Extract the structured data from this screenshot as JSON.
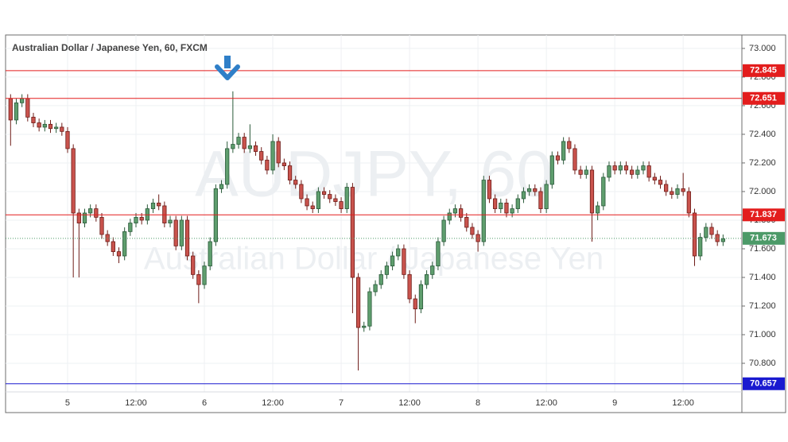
{
  "chart_data": {
    "type": "candlestick",
    "title": "Australian Dollar / Japanese Yen, 60, FXCM",
    "watermark": "AUDJPY, 60",
    "watermark_subtitle": "Australian Dollar / Japanese Yen",
    "up_color": "#5f9e6e",
    "up_border": "#2a5a3a",
    "down_color": "#c9534d",
    "down_border": "#6e1c18",
    "ohlc": [
      [
        72.65,
        72.68,
        72.32,
        72.5
      ],
      [
        72.5,
        72.65,
        72.47,
        72.62
      ],
      [
        72.62,
        72.68,
        72.59,
        72.65
      ],
      [
        72.65,
        72.68,
        72.49,
        72.52
      ],
      [
        72.52,
        72.55,
        72.45,
        72.48
      ],
      [
        72.48,
        72.51,
        72.42,
        72.45
      ],
      [
        72.45,
        72.5,
        72.42,
        72.47
      ],
      [
        72.47,
        72.5,
        72.41,
        72.44
      ],
      [
        72.44,
        72.48,
        72.41,
        72.45
      ],
      [
        72.45,
        72.48,
        72.39,
        72.42
      ],
      [
        72.42,
        72.45,
        72.27,
        72.3
      ],
      [
        72.3,
        72.33,
        71.4,
        71.85
      ],
      [
        71.85,
        71.88,
        71.4,
        71.78
      ],
      [
        71.78,
        71.88,
        71.75,
        71.85
      ],
      [
        71.85,
        71.91,
        71.82,
        71.88
      ],
      [
        71.88,
        71.91,
        71.79,
        71.82
      ],
      [
        71.82,
        71.85,
        71.67,
        71.7
      ],
      [
        71.7,
        71.73,
        71.62,
        71.65
      ],
      [
        71.65,
        71.68,
        71.55,
        71.58
      ],
      [
        71.58,
        71.61,
        71.5,
        71.55
      ],
      [
        71.55,
        71.75,
        71.52,
        71.72
      ],
      [
        71.72,
        71.81,
        71.69,
        71.78
      ],
      [
        71.78,
        71.85,
        71.75,
        71.82
      ],
      [
        71.82,
        71.85,
        71.77,
        71.8
      ],
      [
        71.8,
        71.91,
        71.77,
        71.88
      ],
      [
        71.88,
        71.95,
        71.85,
        71.92
      ],
      [
        71.92,
        71.98,
        71.87,
        71.9
      ],
      [
        71.9,
        71.93,
        71.75,
        71.78
      ],
      [
        71.78,
        71.83,
        71.75,
        71.8
      ],
      [
        71.8,
        71.83,
        71.59,
        71.62
      ],
      [
        71.62,
        71.83,
        71.59,
        71.8
      ],
      [
        71.8,
        71.83,
        71.52,
        71.55
      ],
      [
        71.55,
        71.58,
        71.39,
        71.42
      ],
      [
        71.42,
        71.45,
        71.22,
        71.35
      ],
      [
        71.35,
        71.51,
        71.32,
        71.48
      ],
      [
        71.48,
        71.68,
        71.45,
        71.65
      ],
      [
        71.65,
        72.05,
        71.62,
        72.02
      ],
      [
        72.02,
        72.08,
        71.99,
        72.05
      ],
      [
        72.05,
        72.35,
        72.02,
        72.3
      ],
      [
        72.3,
        72.7,
        72.27,
        72.33
      ],
      [
        72.33,
        72.41,
        72.3,
        72.38
      ],
      [
        72.38,
        72.41,
        72.27,
        72.3
      ],
      [
        72.3,
        72.47,
        72.27,
        72.32
      ],
      [
        72.32,
        72.35,
        72.25,
        72.28
      ],
      [
        72.28,
        72.31,
        72.19,
        72.22
      ],
      [
        72.22,
        72.25,
        72.12,
        72.15
      ],
      [
        72.15,
        72.4,
        72.12,
        72.35
      ],
      [
        72.35,
        72.38,
        72.17,
        72.2
      ],
      [
        72.2,
        72.23,
        72.15,
        72.18
      ],
      [
        72.18,
        72.21,
        72.05,
        72.08
      ],
      [
        72.08,
        72.11,
        72.02,
        72.05
      ],
      [
        72.05,
        72.08,
        71.92,
        71.95
      ],
      [
        71.95,
        71.98,
        71.87,
        71.9
      ],
      [
        71.9,
        71.93,
        71.85,
        71.88
      ],
      [
        71.88,
        72.03,
        71.85,
        72.0
      ],
      [
        72.0,
        72.03,
        71.95,
        71.98
      ],
      [
        71.98,
        72.01,
        71.92,
        71.95
      ],
      [
        71.95,
        71.98,
        71.9,
        71.93
      ],
      [
        71.93,
        71.96,
        71.85,
        71.88
      ],
      [
        71.88,
        72.06,
        71.85,
        72.03
      ],
      [
        72.03,
        72.06,
        71.15,
        71.4
      ],
      [
        71.4,
        71.43,
        70.75,
        71.05
      ],
      [
        71.05,
        71.09,
        71.02,
        71.06
      ],
      [
        71.06,
        71.33,
        71.03,
        71.3
      ],
      [
        71.3,
        71.38,
        71.27,
        71.35
      ],
      [
        71.35,
        71.45,
        71.32,
        71.42
      ],
      [
        71.42,
        71.51,
        71.39,
        71.48
      ],
      [
        71.48,
        71.58,
        71.45,
        71.55
      ],
      [
        71.55,
        71.63,
        71.52,
        71.6
      ],
      [
        71.6,
        71.63,
        71.39,
        71.42
      ],
      [
        71.42,
        71.45,
        71.22,
        71.25
      ],
      [
        71.25,
        71.28,
        71.08,
        71.18
      ],
      [
        71.18,
        71.38,
        71.15,
        71.35
      ],
      [
        71.35,
        71.45,
        71.32,
        71.42
      ],
      [
        71.42,
        71.51,
        71.39,
        71.48
      ],
      [
        71.48,
        71.68,
        71.45,
        71.65
      ],
      [
        71.65,
        71.83,
        71.62,
        71.8
      ],
      [
        71.8,
        71.88,
        71.77,
        71.85
      ],
      [
        71.85,
        71.91,
        71.82,
        71.88
      ],
      [
        71.88,
        71.91,
        71.79,
        71.82
      ],
      [
        71.82,
        71.85,
        71.72,
        71.75
      ],
      [
        71.75,
        71.78,
        71.67,
        71.7
      ],
      [
        71.7,
        71.73,
        71.58,
        71.65
      ],
      [
        71.65,
        72.11,
        71.62,
        72.08
      ],
      [
        72.08,
        72.11,
        71.92,
        71.95
      ],
      [
        71.95,
        71.98,
        71.85,
        71.88
      ],
      [
        71.88,
        71.95,
        71.85,
        71.92
      ],
      [
        71.92,
        71.95,
        71.82,
        71.85
      ],
      [
        71.85,
        71.91,
        71.82,
        71.88
      ],
      [
        71.88,
        71.98,
        71.85,
        71.95
      ],
      [
        71.95,
        72.03,
        71.92,
        72.0
      ],
      [
        72.0,
        72.05,
        71.97,
        72.02
      ],
      [
        72.02,
        72.05,
        71.97,
        72.0
      ],
      [
        72.0,
        72.03,
        71.85,
        71.88
      ],
      [
        71.88,
        72.08,
        71.85,
        72.05
      ],
      [
        72.05,
        72.28,
        72.02,
        72.25
      ],
      [
        72.25,
        72.28,
        72.19,
        72.22
      ],
      [
        72.22,
        72.38,
        72.19,
        72.35
      ],
      [
        72.35,
        72.38,
        72.27,
        72.3
      ],
      [
        72.3,
        72.33,
        72.12,
        72.15
      ],
      [
        72.15,
        72.18,
        72.09,
        72.12
      ],
      [
        72.12,
        72.18,
        72.09,
        72.15
      ],
      [
        72.15,
        72.18,
        71.65,
        71.85
      ],
      [
        71.85,
        71.93,
        71.8,
        71.9
      ],
      [
        71.9,
        72.13,
        71.87,
        72.1
      ],
      [
        72.1,
        72.21,
        72.07,
        72.18
      ],
      [
        72.18,
        72.21,
        72.12,
        72.15
      ],
      [
        72.15,
        72.21,
        72.12,
        72.18
      ],
      [
        72.18,
        72.21,
        72.12,
        72.15
      ],
      [
        72.15,
        72.18,
        72.09,
        72.12
      ],
      [
        72.12,
        72.18,
        72.09,
        72.15
      ],
      [
        72.15,
        72.21,
        72.12,
        72.18
      ],
      [
        72.18,
        72.21,
        72.07,
        72.1
      ],
      [
        72.1,
        72.13,
        72.05,
        72.08
      ],
      [
        72.08,
        72.11,
        72.02,
        72.05
      ],
      [
        72.05,
        72.08,
        71.97,
        72.0
      ],
      [
        72.0,
        72.03,
        71.95,
        71.98
      ],
      [
        71.98,
        72.05,
        71.95,
        72.02
      ],
      [
        72.02,
        72.13,
        71.97,
        72.0
      ],
      [
        72.0,
        72.03,
        71.82,
        71.85
      ],
      [
        71.85,
        71.88,
        71.48,
        71.55
      ],
      [
        71.55,
        71.71,
        71.52,
        71.68
      ],
      [
        71.68,
        71.78,
        71.65,
        71.75
      ],
      [
        71.75,
        71.78,
        71.67,
        71.7
      ],
      [
        71.7,
        71.73,
        71.62,
        71.65
      ],
      [
        71.65,
        71.7,
        71.62,
        71.67
      ]
    ],
    "xlim": [
      -0.88,
      128.3
    ],
    "xticks": [
      {
        "value": 10,
        "label": "5"
      },
      {
        "value": 22,
        "label": "12:00"
      },
      {
        "value": 34,
        "label": "6"
      },
      {
        "value": 46,
        "label": "12:00"
      },
      {
        "value": 58,
        "label": "7"
      },
      {
        "value": 70,
        "label": "12:00"
      },
      {
        "value": 82,
        "label": "8"
      },
      {
        "value": 94,
        "label": "12:00"
      },
      {
        "value": 106,
        "label": "9"
      },
      {
        "value": 118,
        "label": "12:00"
      }
    ],
    "ylim": [
      70.6,
      73.094
    ],
    "yticks": [
      {
        "value": 70.8,
        "label": "70.800"
      },
      {
        "value": 71.0,
        "label": "71.000"
      },
      {
        "value": 71.2,
        "label": "71.200"
      },
      {
        "value": 71.4,
        "label": "71.400"
      },
      {
        "value": 71.6,
        "label": "71.600"
      },
      {
        "value": 71.8,
        "label": "71.800"
      },
      {
        "value": 72.0,
        "label": "72.000"
      },
      {
        "value": 72.2,
        "label": "72.200"
      },
      {
        "value": 72.4,
        "label": "72.400"
      },
      {
        "value": 72.6,
        "label": "72.600"
      },
      {
        "value": 72.8,
        "label": "72.800"
      },
      {
        "value": 73.0,
        "label": "73.000"
      }
    ],
    "grid": true,
    "levels": [
      {
        "value": 72.845,
        "color": "#e31d1d"
      },
      {
        "value": 72.651,
        "color": "#e31d1d"
      },
      {
        "value": 71.837,
        "color": "#e31d1d"
      },
      {
        "value": 70.657,
        "color": "#1a1ad0"
      }
    ],
    "last_price": {
      "value": 71.673,
      "color": "#4c9a68"
    }
  }
}
